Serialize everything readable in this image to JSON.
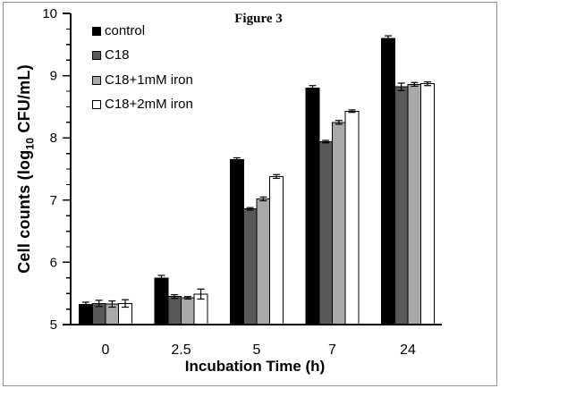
{
  "figure": {
    "title": "Figure 3",
    "y_axis": {
      "label_prefix": "Cell counts (log",
      "label_sub": "10",
      "label_suffix": " CFU/mL)"
    },
    "x_axis": {
      "label": "Incubation Time (h)"
    }
  },
  "chart_data": {
    "type": "bar",
    "title": "Figure 3",
    "xlabel": "Incubation Time (h)",
    "ylabel": "Cell counts (log10 CFU/mL)",
    "ylim": [
      5,
      10
    ],
    "y_major_ticks": [
      5,
      6,
      7,
      8,
      9,
      10
    ],
    "y_minor_tick_step": 0.25,
    "grid": false,
    "legend_position": "upper-left",
    "categories": [
      "0",
      "2.5",
      "5",
      "7",
      "24"
    ],
    "series": [
      {
        "name": "control",
        "color": "#000000",
        "values": [
          5.32,
          5.75,
          7.65,
          8.8,
          9.6
        ],
        "errors": [
          0.04,
          0.04,
          0.03,
          0.04,
          0.04
        ]
      },
      {
        "name": "C18",
        "color": "#595959",
        "values": [
          5.34,
          5.45,
          6.86,
          7.94,
          8.82
        ],
        "errors": [
          0.05,
          0.03,
          0.02,
          0.02,
          0.06
        ]
      },
      {
        "name": "C18+1mM iron",
        "color": "#a9a9a9",
        "values": [
          5.33,
          5.43,
          7.02,
          8.25,
          8.86
        ],
        "errors": [
          0.05,
          0.02,
          0.03,
          0.03,
          0.03
        ]
      },
      {
        "name": "C18+2mM iron",
        "color": "#ffffff",
        "values": [
          5.34,
          5.49,
          7.38,
          8.43,
          8.87
        ],
        "errors": [
          0.06,
          0.08,
          0.03,
          0.02,
          0.03
        ]
      }
    ]
  }
}
